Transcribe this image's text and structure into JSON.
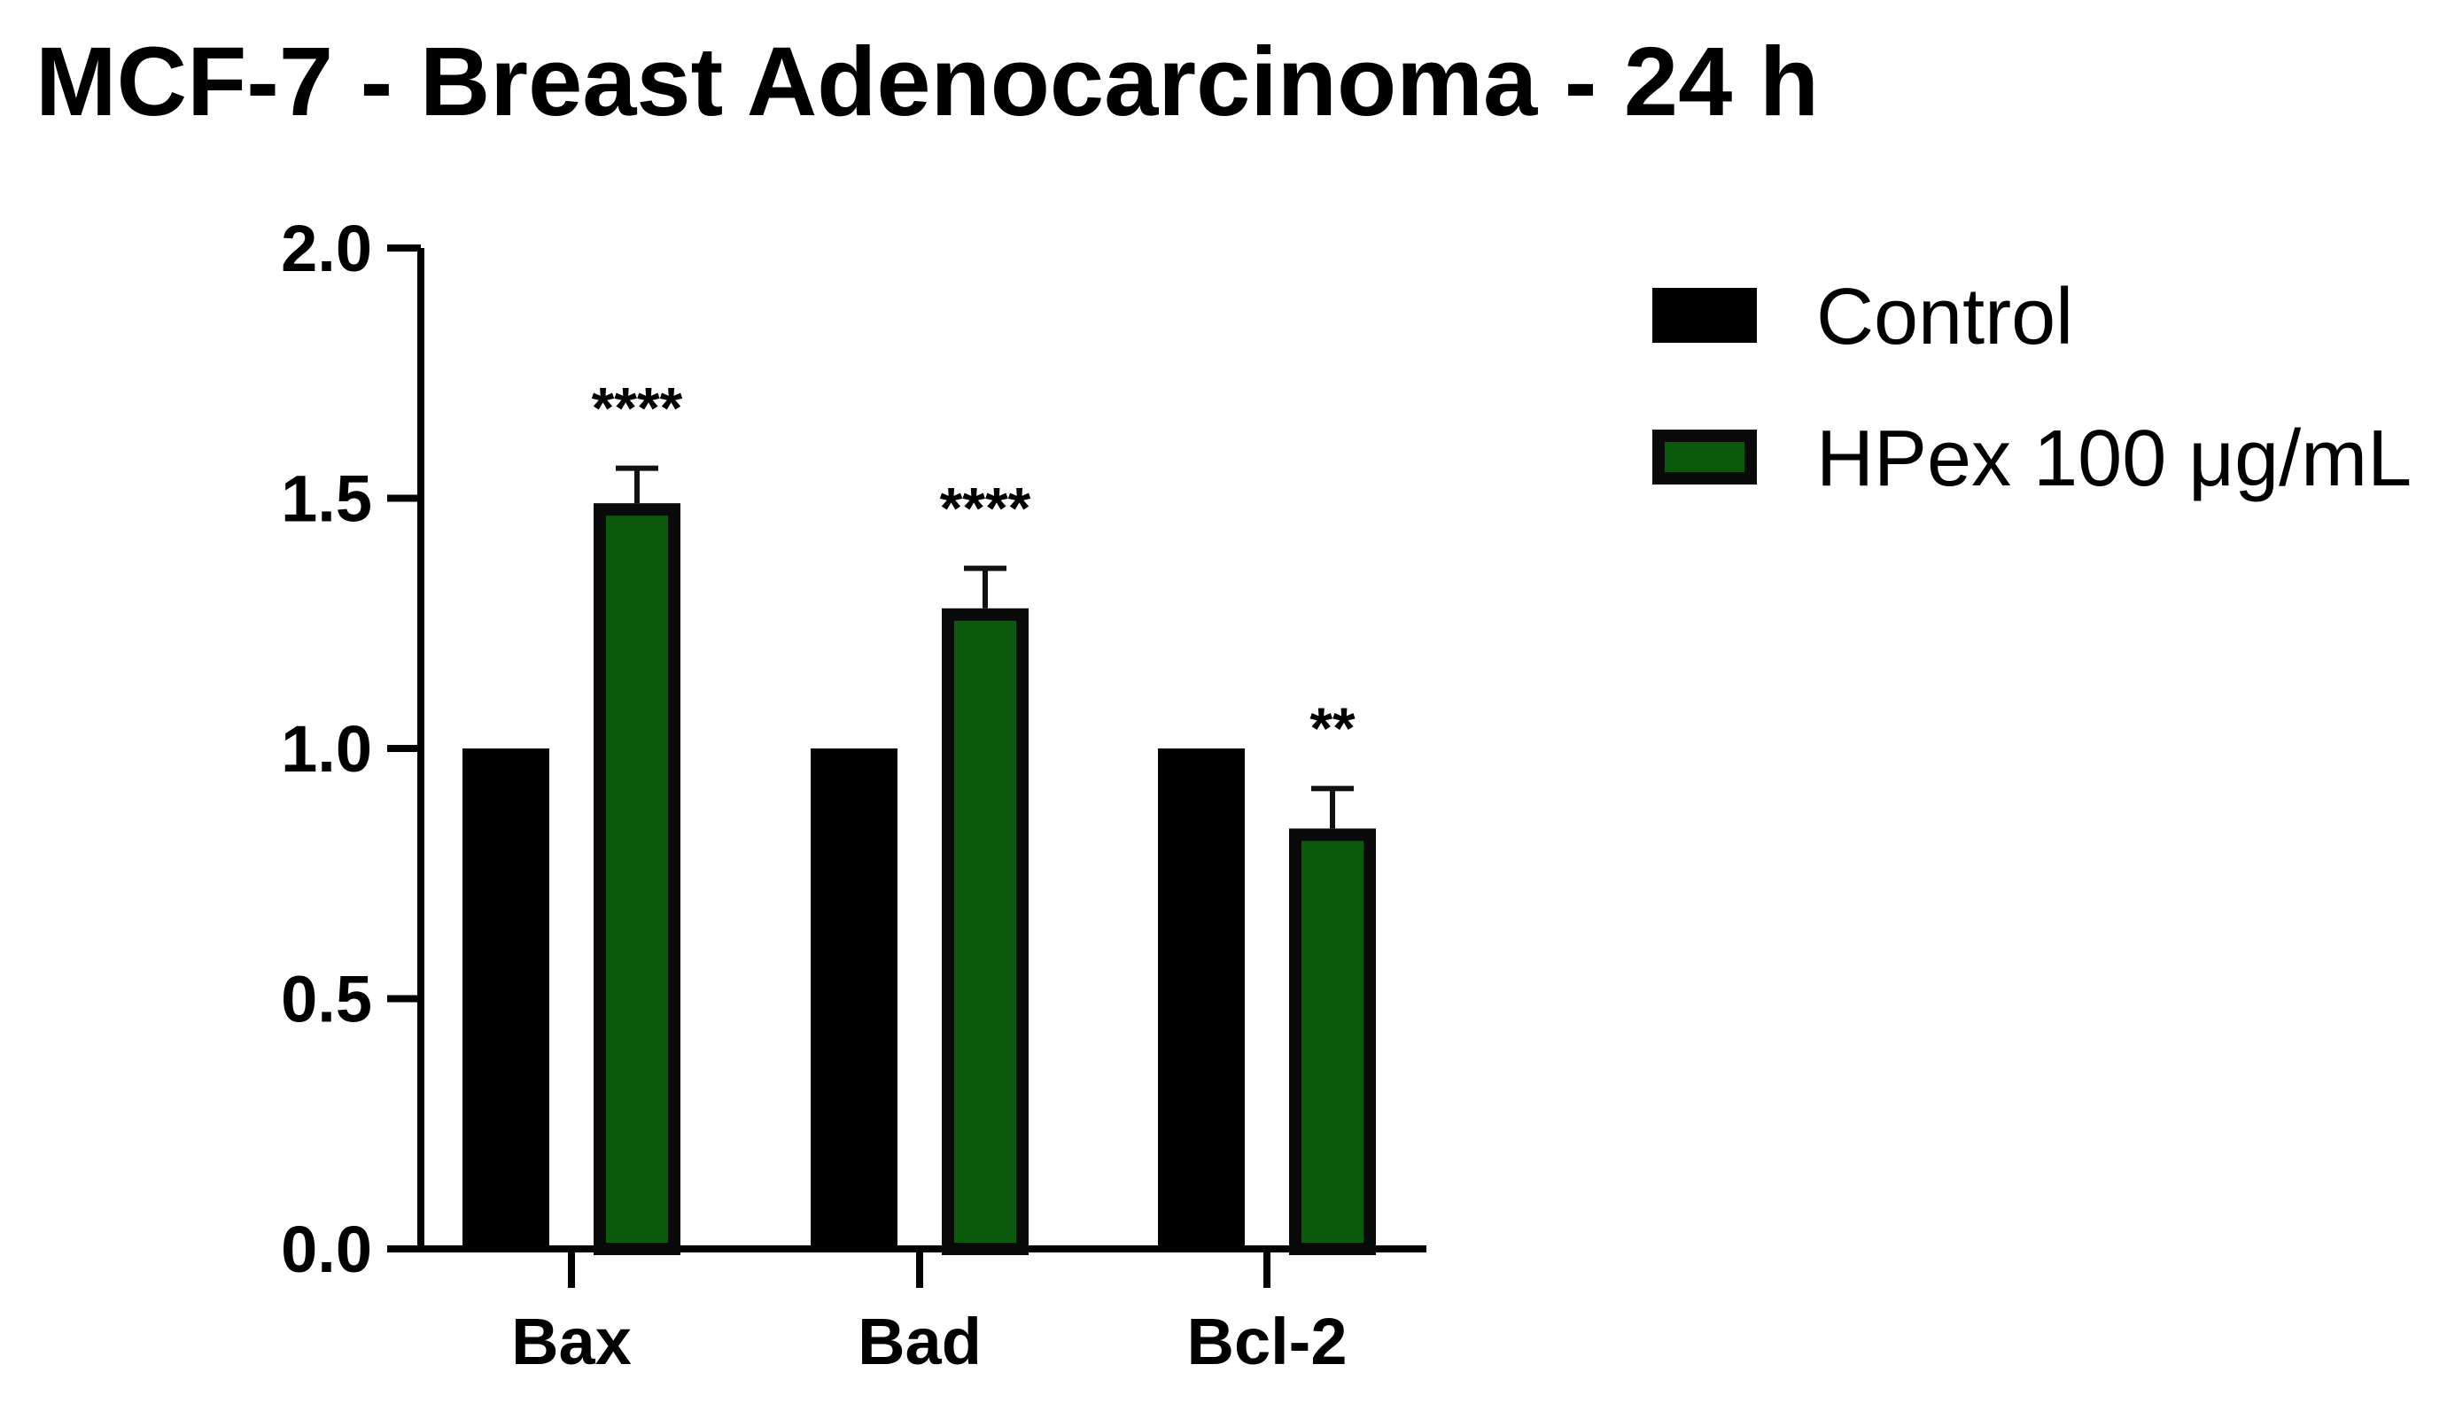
{
  "chart_data": {
    "type": "bar",
    "title": "MCF-7 - Breast Adenocarcinoma - 24 h",
    "xlabel": "",
    "ylabel": "",
    "ylim": [
      0,
      2.0
    ],
    "yticks": [
      0.0,
      0.5,
      1.0,
      1.5,
      2.0
    ],
    "ytick_labels": [
      "0.0",
      "0.5",
      "1.0",
      "1.5",
      "2.0"
    ],
    "categories": [
      "Bax",
      "Bad",
      "Bcl-2"
    ],
    "series": [
      {
        "name": "Control",
        "values": [
          1.0,
          1.0,
          1.0
        ],
        "errors": [
          0,
          0,
          0
        ],
        "color": "#000000",
        "edge_color": "#000000"
      },
      {
        "name": "HPex 100 μg/mL",
        "values": [
          1.49,
          1.28,
          0.84
        ],
        "errors": [
          0.07,
          0.08,
          0.08
        ],
        "color": "#0b5a0b",
        "edge_color": "#0a0a0a"
      }
    ],
    "significance": [
      "****",
      "****",
      "**"
    ],
    "legend": {
      "position": "top-right",
      "entries": [
        "Control",
        "HPex 100 μg/mL"
      ]
    },
    "grid": false
  }
}
